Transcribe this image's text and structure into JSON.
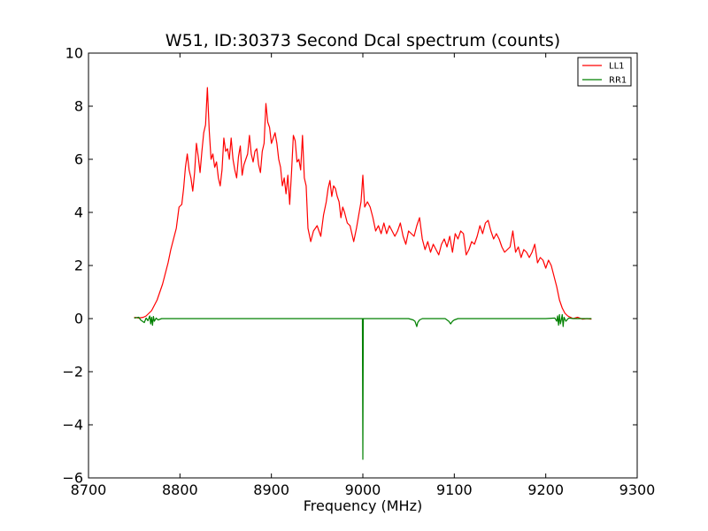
{
  "chart_data": {
    "type": "line",
    "title": "W51, ID:30373 Second Dcal spectrum (counts)",
    "xlabel": "Frequency (MHz)",
    "ylabel": "",
    "xlim": [
      8700,
      9300
    ],
    "ylim": [
      -6,
      10
    ],
    "xticks": [
      8700,
      8800,
      8900,
      9000,
      9100,
      9200,
      9300
    ],
    "xtick_labels": [
      "8700",
      "8800",
      "8900",
      "9000",
      "9100",
      "9200",
      "9300"
    ],
    "yticks": [
      -6,
      -4,
      -2,
      0,
      2,
      4,
      6,
      8,
      10
    ],
    "ytick_labels": [
      "−6",
      "−4",
      "−2",
      "0",
      "2",
      "4",
      "6",
      "8",
      "10"
    ],
    "grid": false,
    "legend_position": "top-right",
    "series": [
      {
        "name": "LL1",
        "color": "#ff0000",
        "x": [
          8750,
          8755,
          8760,
          8763,
          8766,
          8769,
          8772,
          8775,
          8778,
          8781,
          8784,
          8787,
          8790,
          8793,
          8796,
          8799,
          8802,
          8804,
          8806,
          8808,
          8810,
          8812,
          8814,
          8816,
          8818,
          8820,
          8822,
          8824,
          8826,
          8828,
          8830,
          8832,
          8834,
          8836,
          8838,
          8840,
          8842,
          8844,
          8846,
          8848,
          8850,
          8852,
          8854,
          8856,
          8858,
          8860,
          8862,
          8864,
          8866,
          8868,
          8870,
          8872,
          8874,
          8876,
          8878,
          8880,
          8882,
          8884,
          8886,
          8888,
          8890,
          8892,
          8894,
          8896,
          8898,
          8900,
          8902,
          8904,
          8906,
          8908,
          8910,
          8912,
          8914,
          8916,
          8918,
          8920,
          8922,
          8924,
          8926,
          8928,
          8930,
          8932,
          8934,
          8936,
          8938,
          8940,
          8943,
          8946,
          8950,
          8954,
          8957,
          8960,
          8962,
          8964,
          8966,
          8968,
          8970,
          8972,
          8974,
          8976,
          8978,
          8980,
          8983,
          8986,
          8990,
          8993,
          8996,
          8998,
          9000,
          9002,
          9005,
          9008,
          9011,
          9014,
          9017,
          9020,
          9023,
          9026,
          9029,
          9032,
          9035,
          9038,
          9041,
          9044,
          9047,
          9050,
          9053,
          9056,
          9059,
          9062,
          9065,
          9068,
          9071,
          9074,
          9077,
          9080,
          9083,
          9086,
          9089,
          9092,
          9095,
          9098,
          9101,
          9104,
          9107,
          9110,
          9113,
          9116,
          9119,
          9122,
          9125,
          9128,
          9131,
          9134,
          9137,
          9140,
          9143,
          9146,
          9149,
          9152,
          9155,
          9158,
          9161,
          9164,
          9167,
          9170,
          9173,
          9176,
          9179,
          9182,
          9185,
          9188,
          9191,
          9194,
          9197,
          9200,
          9203,
          9206,
          9209,
          9212,
          9215,
          9218,
          9221,
          9224,
          9227,
          9230,
          9235,
          9240,
          9245,
          9250
        ],
        "y": [
          0.05,
          0.02,
          0.05,
          0.1,
          0.2,
          0.3,
          0.5,
          0.7,
          1.0,
          1.3,
          1.7,
          2.1,
          2.6,
          3.0,
          3.4,
          4.2,
          4.3,
          4.9,
          5.7,
          6.2,
          5.6,
          5.3,
          4.8,
          5.5,
          6.6,
          6.1,
          5.5,
          6.3,
          7.0,
          7.3,
          8.7,
          7.1,
          6.0,
          6.2,
          5.7,
          5.9,
          5.3,
          5.0,
          5.6,
          6.8,
          6.3,
          6.4,
          6.0,
          6.8,
          6.0,
          5.6,
          5.3,
          6.1,
          6.5,
          5.4,
          5.8,
          6.0,
          6.2,
          6.9,
          6.2,
          5.9,
          6.3,
          6.4,
          5.8,
          5.5,
          6.3,
          6.6,
          8.1,
          7.4,
          7.2,
          6.6,
          6.8,
          7.0,
          6.6,
          6.0,
          5.7,
          5.0,
          5.3,
          4.7,
          5.4,
          4.3,
          5.5,
          6.9,
          6.7,
          5.9,
          6.0,
          5.6,
          6.9,
          5.3,
          5.0,
          3.4,
          2.9,
          3.3,
          3.5,
          3.1,
          3.9,
          4.4,
          4.9,
          5.2,
          4.6,
          5.0,
          4.9,
          4.6,
          4.4,
          3.8,
          4.2,
          4.0,
          3.6,
          3.5,
          2.9,
          3.4,
          4.0,
          4.4,
          5.4,
          4.2,
          4.4,
          4.2,
          3.8,
          3.3,
          3.5,
          3.2,
          3.6,
          3.2,
          3.5,
          3.3,
          3.1,
          3.3,
          3.6,
          3.1,
          2.8,
          3.3,
          3.2,
          3.1,
          3.5,
          3.8,
          3.0,
          2.6,
          2.9,
          2.5,
          2.8,
          2.6,
          2.4,
          2.8,
          3.0,
          2.7,
          3.1,
          2.5,
          3.2,
          3.0,
          3.3,
          3.2,
          2.4,
          2.6,
          2.9,
          2.8,
          3.1,
          3.5,
          3.2,
          3.6,
          3.7,
          3.3,
          3.0,
          3.2,
          3.0,
          2.7,
          2.5,
          2.6,
          2.7,
          3.3,
          2.5,
          2.7,
          2.3,
          2.6,
          2.5,
          2.3,
          2.5,
          2.8,
          2.1,
          2.3,
          2.2,
          1.9,
          2.2,
          2.0,
          1.6,
          1.2,
          0.7,
          0.4,
          0.2,
          0.1,
          0.05,
          0.0,
          0.05,
          -0.02,
          0.0,
          -0.02
        ]
      },
      {
        "name": "RR1",
        "color": "#008000",
        "x": [
          8750,
          8755,
          8757,
          8759,
          8761,
          8763,
          8765,
          8767,
          8768,
          8769,
          8770,
          8771,
          8772,
          8774,
          8776,
          8780,
          8790,
          8800,
          8850,
          8900,
          8950,
          8990,
          8999.5,
          9000,
          9000.5,
          9010,
          9050,
          9055,
          9057,
          9058,
          9059,
          9060,
          9062,
          9065,
          9070,
          9090,
          9094,
          9096,
          9098,
          9100,
          9104,
          9110,
          9150,
          9200,
          9210,
          9212,
          9213,
          9214,
          9215,
          9216,
          9217,
          9218,
          9219,
          9220,
          9222,
          9225,
          9230,
          9240,
          9250
        ],
        "y": [
          0.02,
          0.05,
          -0.05,
          -0.1,
          -0.15,
          0.02,
          -0.08,
          0.1,
          -0.2,
          0.05,
          -0.25,
          0.08,
          -0.1,
          0.02,
          -0.05,
          0.0,
          0.0,
          0.0,
          0.0,
          0.0,
          0.0,
          0.0,
          0.0,
          -5.3,
          0.0,
          0.0,
          0.0,
          -0.05,
          -0.1,
          -0.2,
          -0.3,
          -0.15,
          -0.05,
          0.0,
          0.0,
          0.0,
          -0.1,
          -0.2,
          -0.1,
          -0.05,
          0.0,
          0.0,
          0.0,
          0.0,
          0.02,
          -0.1,
          0.1,
          -0.25,
          0.15,
          -0.2,
          -0.05,
          0.15,
          -0.3,
          0.05,
          -0.1,
          0.02,
          0.0,
          0.0,
          0.0
        ]
      }
    ]
  }
}
